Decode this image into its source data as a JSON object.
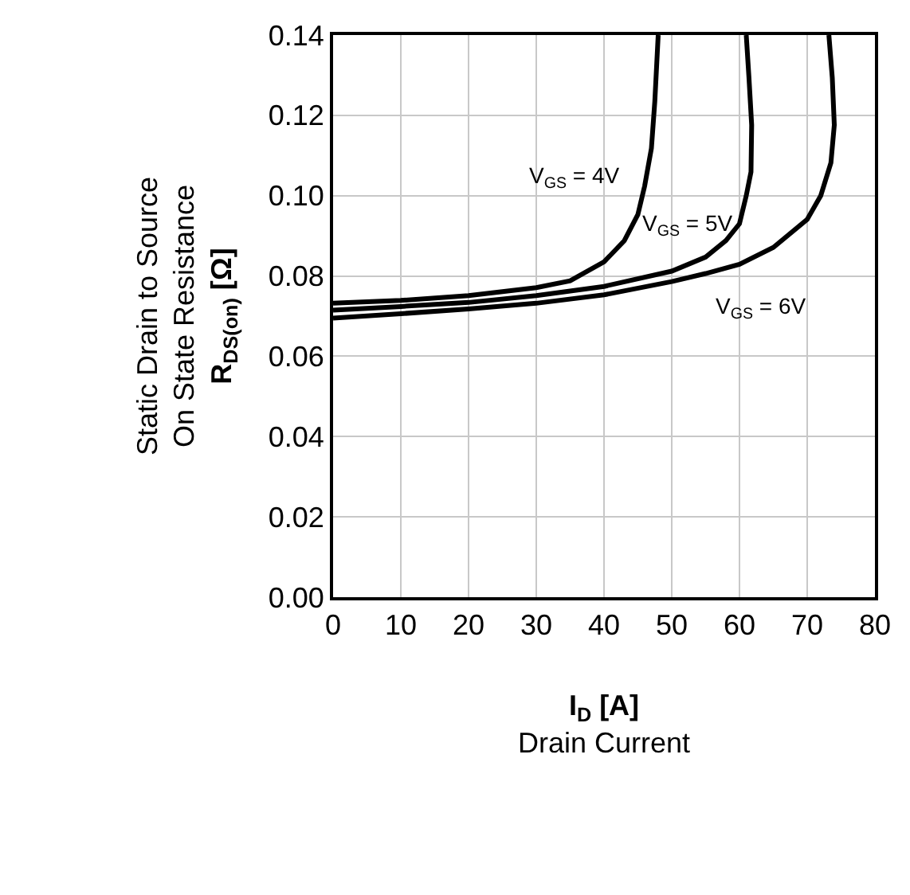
{
  "chart_data": {
    "type": "line",
    "xlabel": "I$_{D}$ [A]\nDrain Current",
    "ylabel": "Static Drain to Source\nOn State Resistance\nR$_{DS(on)}$ [Ω]",
    "xlim": [
      0,
      80
    ],
    "xticks": [
      0,
      10,
      20,
      30,
      40,
      50,
      60,
      70,
      80
    ],
    "ylim": [
      0,
      0.14
    ],
    "yticks": [
      {
        "value": 0,
        "label": "0.00"
      },
      {
        "value": 0.02,
        "label": "0.02"
      },
      {
        "value": 0.04,
        "label": "0.04"
      },
      {
        "value": 0.06,
        "label": "0.06"
      },
      {
        "value": 0.08,
        "label": "0.08"
      },
      {
        "value": 0.1,
        "label": "0.10"
      },
      {
        "value": 0.12,
        "label": "0.12"
      },
      {
        "value": 0.14,
        "label": "0.14"
      }
    ],
    "grid": true,
    "legend": false,
    "marker": "none",
    "line_style": "solid",
    "series": [
      {
        "name": "V$_{GS}$ = 4V",
        "color": "#000000",
        "x": [
          0,
          10,
          20,
          30,
          35,
          40,
          43,
          45,
          46,
          47,
          47.5,
          48
        ],
        "values": [
          0.0732,
          0.0739,
          0.0751,
          0.0771,
          0.0788,
          0.0835,
          0.0888,
          0.0953,
          0.1024,
          0.1118,
          0.1235,
          0.14
        ]
      },
      {
        "name": "V$_{GS}$ = 5V",
        "color": "#000000",
        "x": [
          0,
          10,
          20,
          30,
          40,
          50,
          55,
          58,
          60,
          61,
          61.7,
          61.8,
          61.4,
          61.0
        ],
        "values": [
          0.0715,
          0.0724,
          0.0734,
          0.0751,
          0.0774,
          0.0812,
          0.0847,
          0.0888,
          0.093,
          0.1,
          0.1059,
          0.1176,
          0.1294,
          0.14
        ]
      },
      {
        "name": "V$_{GS}$ = 6V",
        "color": "#000000",
        "x": [
          0,
          10,
          20,
          30,
          40,
          50,
          55,
          60,
          65,
          70,
          72,
          73.5,
          74,
          73.7,
          73.2
        ],
        "values": [
          0.0695,
          0.0706,
          0.0718,
          0.0732,
          0.0753,
          0.0786,
          0.0806,
          0.0829,
          0.0871,
          0.0941,
          0.1,
          0.1082,
          0.1176,
          0.1294,
          0.14
        ]
      }
    ]
  }
}
